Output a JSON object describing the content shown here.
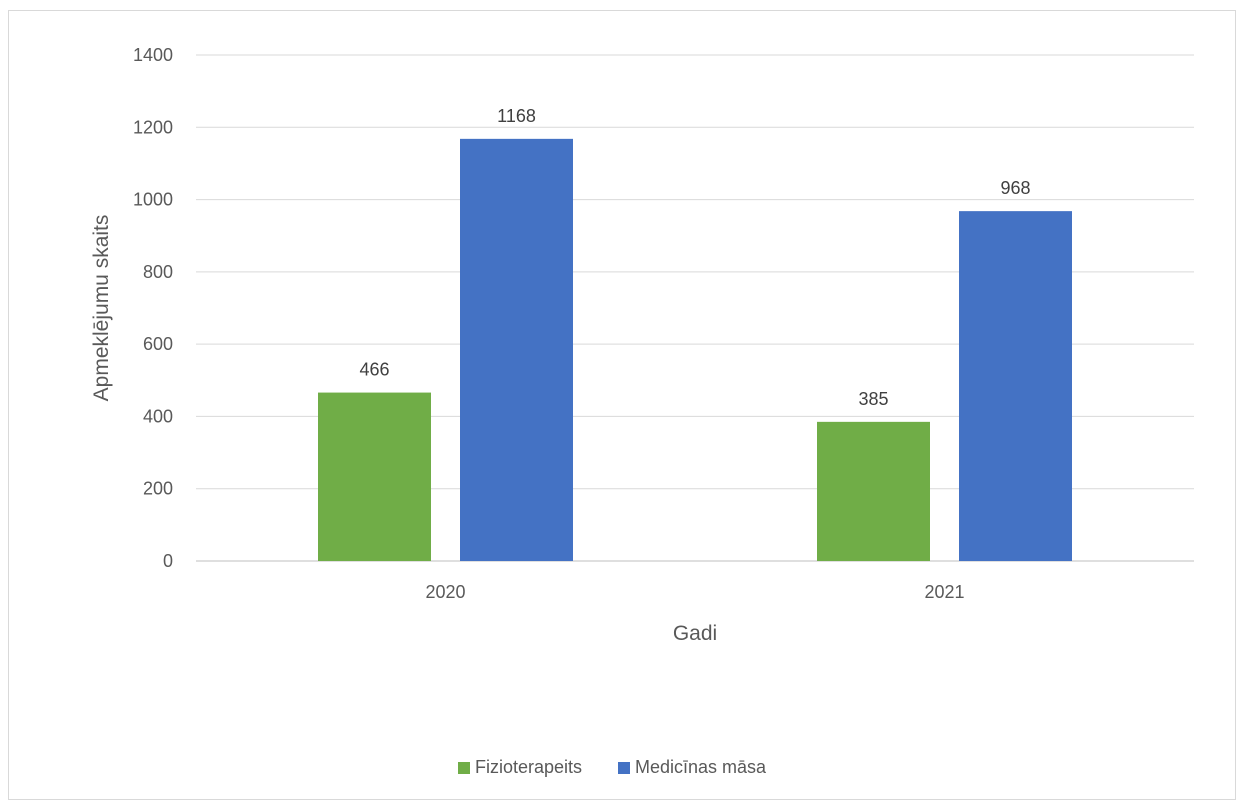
{
  "chart_data": {
    "type": "bar",
    "title": "",
    "xlabel": "Gadi",
    "ylabel": "Apmeklējumu skaits",
    "categories": [
      "2020",
      "2021"
    ],
    "series": [
      {
        "name": "Fizioterapeits",
        "values": [
          466,
          385
        ],
        "color": "#70ad47"
      },
      {
        "name": "Medicīnas māsa",
        "values": [
          1168,
          968
        ],
        "color": "#4472c4"
      }
    ],
    "ylim": [
      0,
      1400
    ],
    "yticks": [
      0,
      200,
      400,
      600,
      800,
      1000,
      1200,
      1400
    ],
    "grid": true,
    "data_labels": true,
    "legend_position": "bottom"
  }
}
